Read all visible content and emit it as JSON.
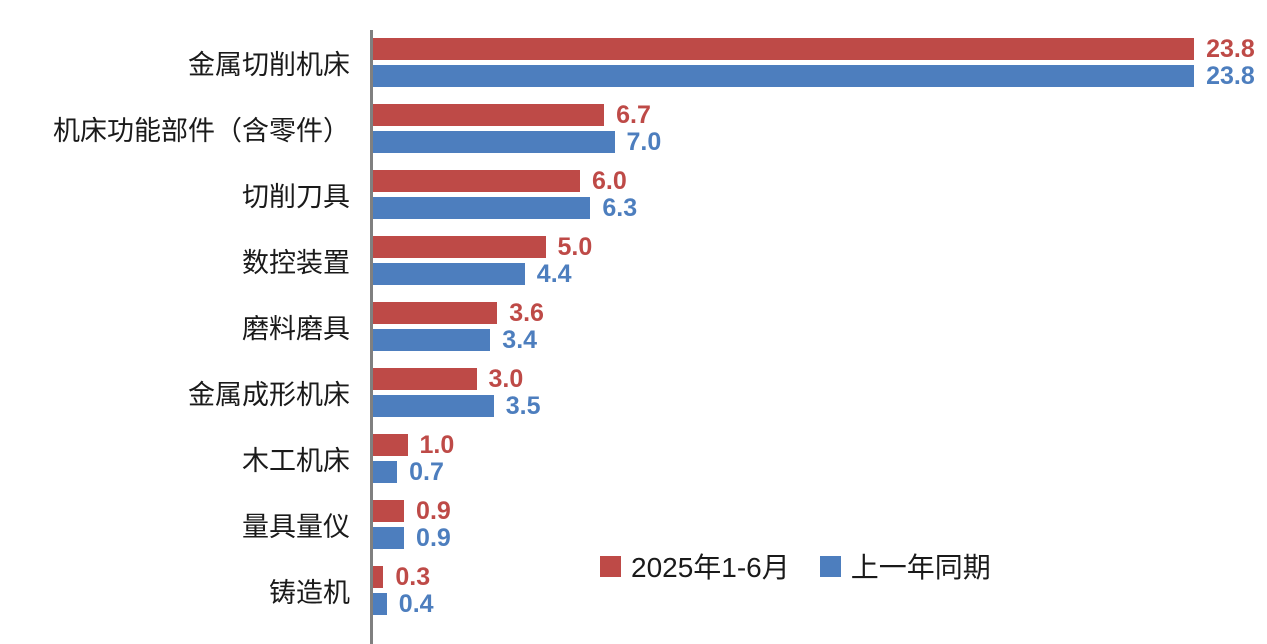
{
  "chart_data": {
    "type": "bar",
    "orientation": "horizontal",
    "title": "",
    "xlabel": "",
    "ylabel": "",
    "grid": false,
    "legend_position": "bottom-center",
    "axis_color": "#808080",
    "xlim": [
      0,
      26
    ],
    "value_labels": true,
    "value_label_format": "one-decimal",
    "categories": [
      "金属切削机床",
      "机床功能部件（含零件）",
      "切削刀具",
      "数控装置",
      "磨料磨具",
      "金属成形机床",
      "木工机床",
      "量具量仪",
      "铸造机"
    ],
    "series": [
      {
        "name": "2025年1-6月",
        "color": "#be4a47",
        "values": [
          23.8,
          6.7,
          6.0,
          5.0,
          3.6,
          3.0,
          1.0,
          0.9,
          0.3
        ]
      },
      {
        "name": "上一年同期",
        "color": "#4d7ebe",
        "values": [
          23.8,
          7.0,
          6.3,
          4.4,
          3.4,
          3.5,
          0.7,
          0.9,
          0.4
        ]
      }
    ]
  }
}
